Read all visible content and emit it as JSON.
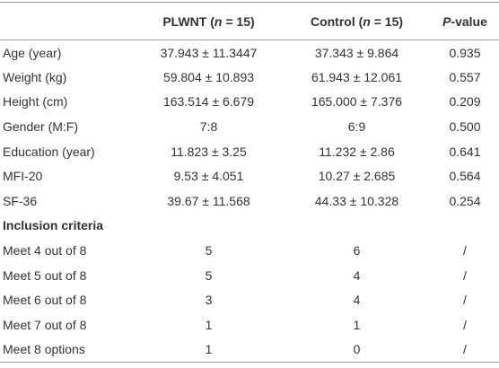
{
  "table": {
    "header": [
      [],
      [
        "PLWNT (",
        "n",
        " = 15)"
      ],
      [
        "Control (",
        "n",
        " = 15)"
      ],
      [
        "P",
        "-value"
      ]
    ],
    "rows": [
      [
        "Age (year)",
        "37.943 ± 11.3447",
        "37.343 ± 9.864",
        "0.935"
      ],
      [
        "Weight (kg)",
        "59.804 ± 10.893",
        "61.943 ± 12.061",
        "0.557"
      ],
      [
        "Height (cm)",
        "163.514 ± 6.679",
        "165.000 ± 7.376",
        "0.209"
      ],
      [
        "Gender (M:F)",
        "7:8",
        "6:9",
        "0.500"
      ],
      [
        "Education (year)",
        "11.823 ± 3.25",
        "11.232 ± 2.86",
        "0.641"
      ],
      [
        "MFI-20",
        "9.53 ± 4.051",
        "10.27 ± 2.685",
        "0.564"
      ],
      [
        "SF-36",
        "39.67 ± 11.568",
        "44.33 ± 10.328",
        "0.254"
      ],
      [
        "Inclusion criteria"
      ],
      [
        "Meet 4 out of 8",
        "5",
        "6",
        "/"
      ],
      [
        "Meet 5 out of 8",
        "5",
        "4",
        "/"
      ],
      [
        "Meet 6 out of 8",
        "3",
        "4",
        "/"
      ],
      [
        "Meet 7 out of 8",
        "1",
        "1",
        "/"
      ],
      [
        "Meet 8 options",
        "1",
        "0",
        "/"
      ]
    ]
  }
}
